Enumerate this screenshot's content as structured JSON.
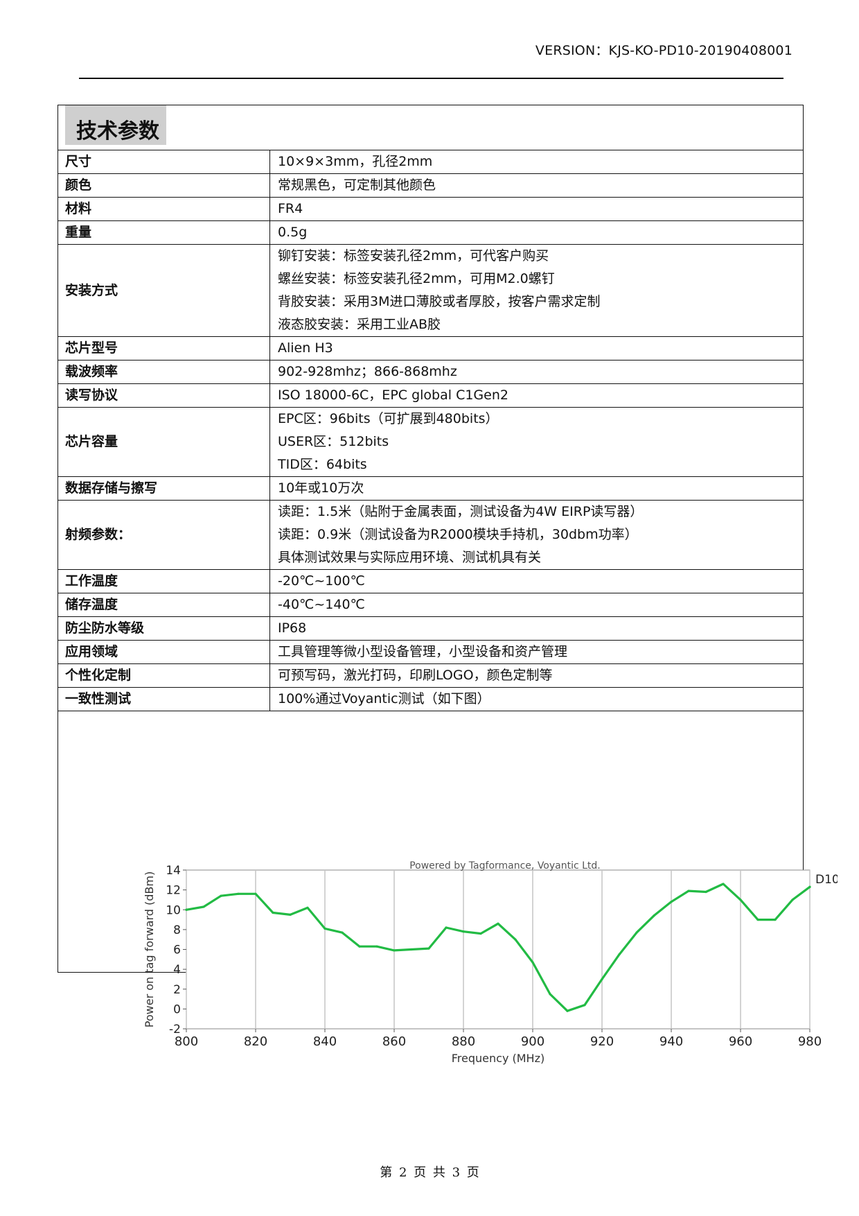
{
  "header": {
    "version": "VERSION：KJS-KO-PD10-20190408001"
  },
  "section": {
    "title": "技术参数"
  },
  "specs": [
    {
      "key": "尺寸",
      "values": [
        "10×9×3mm，孔径2mm"
      ]
    },
    {
      "key": "颜色",
      "values": [
        "常规黑色，可定制其他颜色"
      ]
    },
    {
      "key": "材料",
      "values": [
        "FR4"
      ]
    },
    {
      "key": "重量",
      "values": [
        "0.5g"
      ]
    },
    {
      "key": "安装方式",
      "values": [
        "铆钉安装：标签安装孔径2mm，可代客户购买",
        "螺丝安装：标签安装孔径2mm，可用M2.0螺钉",
        "背胶安装：采用3M进口薄胶或者厚胶，按客户需求定制",
        "液态胶安装：采用工业AB胶"
      ]
    },
    {
      "key": "芯片型号",
      "values": [
        "Alien H3"
      ]
    },
    {
      "key": "载波频率",
      "values": [
        "902-928mhz；866-868mhz"
      ]
    },
    {
      "key": "读写协议",
      "values": [
        "ISO 18000-6C，EPC global C1Gen2"
      ]
    },
    {
      "key": "芯片容量",
      "values": [
        "EPC区：96bits（可扩展到480bits）",
        "USER区：512bits",
        "TID区：64bits"
      ]
    },
    {
      "key": "数据存储与擦写",
      "values": [
        "10年或10万次"
      ]
    },
    {
      "key": "射频参数：",
      "values": [
        "读距：1.5米（贴附于金属表面，测试设备为4W EIRP读写器）",
        "读距：0.9米（测试设备为R2000模块手持机，30dbm功率）",
        "具体测试效果与实际应用环境、测试机具有关"
      ]
    },
    {
      "key": "工作温度",
      "values": [
        "-20℃~100℃"
      ]
    },
    {
      "key": "储存温度",
      "values": [
        "-40℃~140℃"
      ]
    },
    {
      "key": "防尘防水等级",
      "values": [
        "IP68"
      ]
    },
    {
      "key": "应用领域",
      "values": [
        "工具管理等微小型设备管理，小型设备和资产管理"
      ]
    },
    {
      "key": "个性化定制",
      "values": [
        "可预写码，激光打码，印刷LOGO，颜色定制等"
      ]
    },
    {
      "key": "一致性测试",
      "values": [
        "100%通过Voyantic测试（如下图）"
      ]
    }
  ],
  "chart_data": {
    "type": "line",
    "title": "Powered by Tagformance, Voyantic Ltd.",
    "xlabel": "Frequency (MHz)",
    "ylabel": "Power on tag forward (dBm)",
    "xlim": [
      800,
      980
    ],
    "ylim": [
      -2,
      14
    ],
    "xticks": [
      800,
      820,
      840,
      860,
      880,
      900,
      920,
      940,
      960,
      980
    ],
    "yticks": [
      -2,
      0,
      2,
      4,
      6,
      8,
      10,
      12,
      14
    ],
    "grid": true,
    "color": "#22bb44",
    "series": [
      {
        "name": "D10",
        "x": [
          800,
          805,
          810,
          815,
          820,
          825,
          830,
          835,
          840,
          845,
          850,
          855,
          860,
          865,
          870,
          875,
          880,
          885,
          890,
          895,
          900,
          905,
          910,
          915,
          920,
          925,
          930,
          935,
          940,
          945,
          950,
          955,
          960,
          965,
          970,
          975,
          980
        ],
        "values": [
          10.0,
          10.3,
          11.4,
          11.6,
          11.6,
          9.7,
          9.5,
          10.2,
          8.1,
          7.7,
          6.3,
          6.3,
          5.9,
          6.0,
          6.1,
          8.2,
          7.8,
          7.6,
          8.6,
          7.0,
          4.7,
          1.5,
          -0.2,
          0.4,
          3.0,
          5.5,
          7.7,
          9.4,
          10.8,
          11.9,
          11.8,
          12.6,
          11.0,
          9.0,
          9.0,
          11.0,
          12.3
        ]
      }
    ]
  },
  "footer": {
    "page": "第 2 页 共 3 页"
  }
}
